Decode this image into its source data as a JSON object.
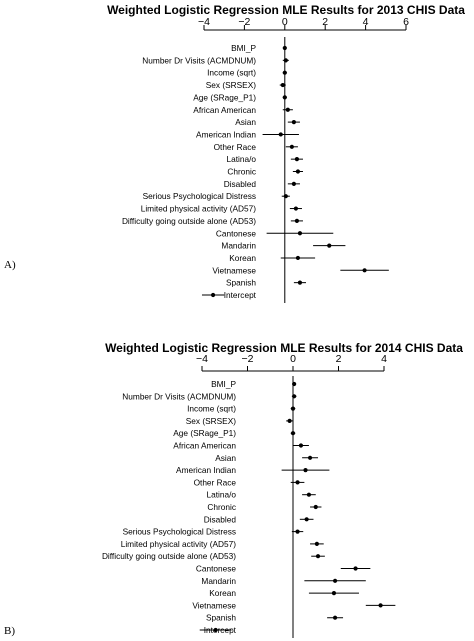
{
  "chart_data": [
    {
      "type": "scatter",
      "panel_label": "A)",
      "title": "Weighted Logistic Regression MLE Results for 2013 CHIS Data",
      "xlim": [
        -4,
        6
      ],
      "xticks": [
        "−4",
        "−2",
        "0",
        "2",
        "4",
        "6"
      ],
      "xticks_values": [
        -4,
        -2,
        0,
        2,
        4,
        6
      ],
      "reference_line": 0,
      "categories": [
        "BMI_P",
        "Number Dr Visits (ACMDNUM)",
        "Income (sqrt)",
        "Sex (SRSEX)",
        "Age (SRage_P1)",
        "African American",
        "Asian",
        "American Indian",
        "Other Race",
        "Latina/o",
        "Chronic",
        "Disabled",
        "Serious Psychological Distress",
        "Limited physical activity (AD57)",
        "Difficulty going outside alone (AD53)",
        "Cantonese",
        "Mandarin",
        "Korean",
        "Vietnamese",
        "Spanish",
        "Intercept"
      ],
      "estimates": [
        0.0,
        0.05,
        0.0,
        -0.1,
        0.0,
        0.15,
        0.45,
        -0.2,
        0.35,
        0.6,
        0.65,
        0.45,
        0.05,
        0.55,
        0.6,
        0.75,
        2.2,
        0.65,
        3.95,
        0.75,
        -3.55
      ],
      "ci_low": [
        -0.05,
        -0.1,
        -0.1,
        -0.25,
        -0.1,
        -0.1,
        0.15,
        -1.1,
        0.05,
        0.3,
        0.4,
        0.15,
        -0.15,
        0.25,
        0.3,
        -0.9,
        1.4,
        -0.2,
        2.75,
        0.45,
        -4.1
      ],
      "ci_high": [
        0.05,
        0.2,
        0.1,
        0.05,
        0.1,
        0.4,
        0.75,
        0.7,
        0.65,
        0.9,
        0.9,
        0.75,
        0.25,
        0.85,
        0.9,
        2.4,
        3.0,
        1.5,
        5.15,
        1.05,
        -3.0
      ],
      "grid": false
    },
    {
      "type": "scatter",
      "panel_label": "B)",
      "title": "Weighted Logistic Regression MLE Results for 2014 CHIS Data",
      "xlim": [
        -4,
        4
      ],
      "xticks": [
        "−4",
        "−2",
        "0",
        "2",
        "4"
      ],
      "xticks_values": [
        -4,
        -2,
        0,
        2,
        4
      ],
      "reference_line": 0,
      "categories": [
        "BMI_P",
        "Number Dr Visits (ACMDNUM)",
        "Income (sqrt)",
        "Sex (SRSEX)",
        "Age (SRage_P1)",
        "African American",
        "Asian",
        "American Indian",
        "Other Race",
        "Latina/o",
        "Chronic",
        "Disabled",
        "Serious Psychological Distress",
        "Limited physical activity (AD57)",
        "Difficulty going outside alone (AD53)",
        "Cantonese",
        "Mandarin",
        "Korean",
        "Vietnamese",
        "Spanish",
        "Intercept"
      ],
      "estimates": [
        0.05,
        0.05,
        0.0,
        -0.15,
        0.0,
        0.35,
        0.75,
        0.55,
        0.2,
        0.7,
        1.0,
        0.6,
        0.2,
        1.05,
        1.1,
        2.75,
        1.85,
        1.8,
        3.85,
        1.85,
        -3.4
      ],
      "ci_low": [
        0.0,
        -0.05,
        -0.1,
        -0.3,
        -0.1,
        0.0,
        0.4,
        -0.5,
        -0.1,
        0.4,
        0.75,
        0.3,
        -0.05,
        0.75,
        0.8,
        2.1,
        0.5,
        0.7,
        3.2,
        1.5,
        -4.1
      ],
      "ci_high": [
        0.1,
        0.15,
        0.1,
        0.0,
        0.1,
        0.7,
        1.1,
        1.6,
        0.5,
        1.0,
        1.25,
        0.9,
        0.45,
        1.35,
        1.4,
        3.4,
        3.2,
        2.9,
        4.5,
        2.2,
        -2.7
      ],
      "grid": false
    }
  ]
}
